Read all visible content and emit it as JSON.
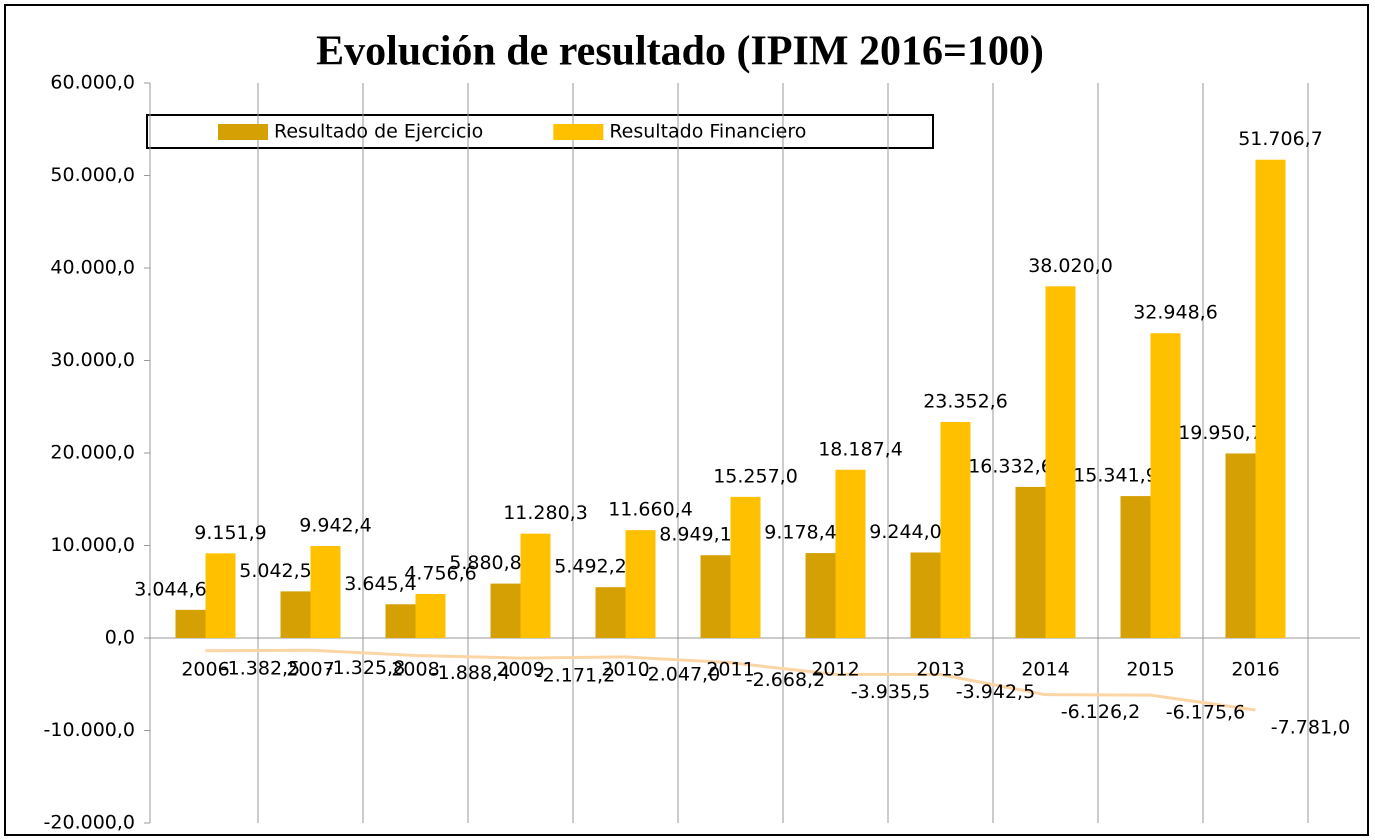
{
  "chart_data": {
    "type": "bar",
    "title": "Evolución de resultado (IPIM 2016=100)",
    "categories": [
      "2006",
      "2007",
      "2008",
      "2009",
      "2010",
      "2011",
      "2012",
      "2013",
      "2014",
      "2015",
      "2016"
    ],
    "series": [
      {
        "name": "Resultado de Ejercicio",
        "color": "#d4a004",
        "values": [
          3044.6,
          5042.5,
          3645.4,
          5880.8,
          5492.2,
          8949.1,
          9178.4,
          9244.0,
          16332.6,
          15341.9,
          19950.7
        ],
        "value_labels": [
          "3.044,6",
          "5.042,5",
          "3.645,4",
          "5.880,8",
          "5.492,2",
          "8.949,1",
          "9.178,4",
          "9.244,0",
          "16.332,6",
          "15.341,9",
          "19.950,7"
        ]
      },
      {
        "name": "Resultado Financiero",
        "color": "#ffc000",
        "values": [
          9151.9,
          9942.4,
          4756.6,
          11280.3,
          11660.4,
          15257.0,
          18187.4,
          23352.6,
          38020.0,
          32948.6,
          51706.7
        ],
        "value_labels": [
          "9.151,9",
          "9.942,4",
          "4.756,6",
          "11.280,3",
          "11.660,4",
          "15.257,0",
          "18.187,4",
          "23.352,6",
          "38.020,0",
          "32.948,6",
          "51.706,7"
        ]
      },
      {
        "type": "line",
        "color": "#fcd5a4",
        "values": [
          -1382.5,
          -1325.8,
          -1888.4,
          -2171.2,
          -2047.0,
          -2668.2,
          -3935.5,
          -3942.5,
          -6126.2,
          -6175.6,
          -7781.0
        ],
        "value_labels": [
          "-1.382,5",
          "-1.325,8",
          "-1.888,4",
          "-2.171,2",
          "-2.047,0",
          "-2.668,2",
          "-3.935,5",
          "-3.942,5",
          "-6.126,2",
          "-6.175,6",
          "-7.781,0"
        ]
      }
    ],
    "ylim": [
      -20000,
      60000
    ],
    "yticks": [
      {
        "value": -20000,
        "label": "-20.000,0"
      },
      {
        "value": -10000,
        "label": "-10.000,0"
      },
      {
        "value": 0,
        "label": "0,0"
      },
      {
        "value": 10000,
        "label": "10.000,0"
      },
      {
        "value": 20000,
        "label": "20.000,0"
      },
      {
        "value": 30000,
        "label": "30.000,0"
      },
      {
        "value": 40000,
        "label": "40.000,0"
      },
      {
        "value": 50000,
        "label": "50.000,0"
      },
      {
        "value": 60000,
        "label": "60.000,0"
      }
    ],
    "grid": true,
    "legend": "top"
  }
}
